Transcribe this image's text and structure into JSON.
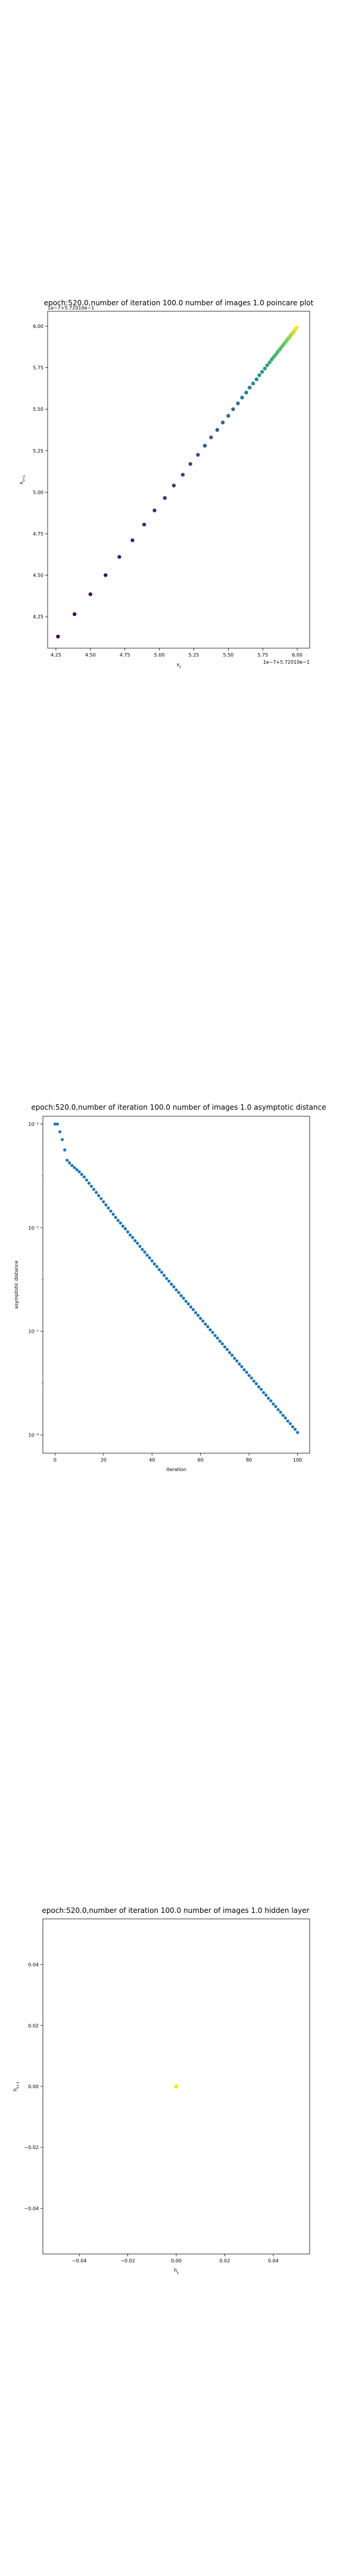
{
  "chart_data": [
    {
      "type": "scatter",
      "title": "epoch:520.0,number of iteration 100.0 number of images 1.0 poincare plot",
      "xlabel": "x_t",
      "ylabel": "x_{t+1}",
      "x_offset_text": "1e−7+5.72010e−1",
      "y_offset_text": "1e−7+5.72010e−1",
      "xlim": [
        4.19,
        6.09
      ],
      "ylim": [
        4.06,
        6.09
      ],
      "x_ticks": [
        "4.25",
        "4.50",
        "4.75",
        "5.00",
        "5.25",
        "5.50",
        "5.75",
        "6.00"
      ],
      "y_ticks": [
        "4.25",
        "4.50",
        "4.75",
        "5.00",
        "5.25",
        "5.50",
        "5.75",
        "6.00"
      ],
      "colormap": "viridis",
      "series": [
        {
          "x": [
            4.265,
            4.385,
            4.5,
            4.61,
            4.71,
            4.805,
            4.89,
            4.965,
            5.04,
            5.105,
            5.17,
            5.225,
            5.28,
            5.33,
            5.375,
            5.42,
            5.46,
            5.5,
            5.535,
            5.57,
            5.6,
            5.63,
            5.655,
            5.68,
            5.705,
            5.725,
            5.745,
            5.765,
            5.782,
            5.8,
            5.815,
            5.83,
            5.845,
            5.858,
            5.871,
            5.883,
            5.895,
            5.906,
            5.916,
            5.926,
            5.935,
            5.944,
            5.952,
            5.96,
            5.967,
            5.974,
            5.98,
            5.986,
            5.992,
            5.998
          ],
          "y": [
            4.13,
            4.265,
            4.385,
            4.5,
            4.61,
            4.71,
            4.805,
            4.89,
            4.965,
            5.04,
            5.105,
            5.17,
            5.225,
            5.28,
            5.33,
            5.375,
            5.42,
            5.46,
            5.5,
            5.535,
            5.57,
            5.6,
            5.63,
            5.655,
            5.68,
            5.705,
            5.725,
            5.745,
            5.765,
            5.782,
            5.8,
            5.815,
            5.83,
            5.845,
            5.858,
            5.871,
            5.883,
            5.895,
            5.906,
            5.916,
            5.926,
            5.935,
            5.944,
            5.952,
            5.96,
            5.967,
            5.974,
            5.98,
            5.986,
            5.992
          ]
        }
      ]
    },
    {
      "type": "scatter",
      "title": "epoch:520.0,number of iteration 100.0  number of images 1.0 asymptotic distance",
      "xlabel": "iteration",
      "ylabel": "asymptotic distance",
      "yscale": "log",
      "xlim": [
        -5,
        105
      ],
      "ylim_log10": [
        -9.35,
        -2.85
      ],
      "x_ticks": [
        0,
        20,
        40,
        60,
        80,
        100
      ],
      "y_tick_exponents": [
        -3,
        -5,
        -7,
        -9
      ],
      "y_tick_labels": [
        "10⁻³",
        "10⁻⁵",
        "10⁻⁷",
        "10⁻⁹"
      ],
      "color": "#1f77b4",
      "series": [
        {
          "x": [
            0,
            1,
            2,
            3,
            4,
            5,
            6,
            7,
            8,
            9,
            10,
            11,
            12,
            13,
            14,
            15,
            16,
            17,
            18,
            19,
            20,
            21,
            22,
            23,
            24,
            25,
            26,
            27,
            28,
            29,
            30,
            31,
            32,
            33,
            34,
            35,
            36,
            37,
            38,
            39,
            40,
            41,
            42,
            43,
            44,
            45,
            46,
            47,
            48,
            49,
            50,
            51,
            52,
            53,
            54,
            55,
            56,
            57,
            58,
            59,
            60,
            61,
            62,
            63,
            64,
            65,
            66,
            67,
            68,
            69,
            70,
            71,
            72,
            73,
            74,
            75,
            76,
            77,
            78,
            79,
            80,
            81,
            82,
            83,
            84,
            85,
            86,
            87,
            88,
            89,
            90,
            91,
            92,
            93,
            94,
            95,
            96,
            97,
            98,
            99,
            100
          ],
          "log10_y": [
            -3.0,
            -3.0,
            -3.15,
            -3.3,
            -3.5,
            -3.7,
            -3.75,
            -3.8,
            -3.84,
            -3.88,
            -3.92,
            -3.97,
            -4.02,
            -4.08,
            -4.14,
            -4.2,
            -4.26,
            -4.32,
            -4.38,
            -4.44,
            -4.5,
            -4.56,
            -4.62,
            -4.68,
            -4.74,
            -4.8,
            -4.86,
            -4.91,
            -4.97,
            -5.02,
            -5.08,
            -5.14,
            -5.19,
            -5.25,
            -5.3,
            -5.36,
            -5.42,
            -5.47,
            -5.53,
            -5.58,
            -5.64,
            -5.7,
            -5.75,
            -5.81,
            -5.86,
            -5.92,
            -5.98,
            -6.03,
            -6.09,
            -6.14,
            -6.2,
            -6.25,
            -6.31,
            -6.36,
            -6.42,
            -6.47,
            -6.53,
            -6.58,
            -6.64,
            -6.69,
            -6.75,
            -6.8,
            -6.86,
            -6.91,
            -6.97,
            -7.02,
            -7.08,
            -7.13,
            -7.19,
            -7.24,
            -7.3,
            -7.35,
            -7.41,
            -7.46,
            -7.52,
            -7.57,
            -7.63,
            -7.68,
            -7.74,
            -7.79,
            -7.85,
            -7.9,
            -7.96,
            -8.01,
            -8.07,
            -8.12,
            -8.18,
            -8.23,
            -8.29,
            -8.34,
            -8.4,
            -8.45,
            -8.51,
            -8.56,
            -8.62,
            -8.67,
            -8.73,
            -8.78,
            -8.84,
            -8.89,
            -8.95
          ]
        }
      ]
    },
    {
      "type": "scatter",
      "title": "epoch:520.0,number of iteration 100.0  number of images 1.0 hidden layer",
      "xlabel": "h_t",
      "ylabel": "h_{t+1}",
      "xlim": [
        -0.055,
        0.055
      ],
      "ylim": [
        -0.055,
        0.055
      ],
      "x_ticks": [
        "−0.04",
        "−0.02",
        "0.00",
        "0.02",
        "0.04"
      ],
      "y_ticks": [
        "0.04",
        "0.02",
        "0.00",
        "−0.02",
        "−0.04"
      ],
      "color": "#fde725",
      "series": [
        {
          "x": [
            0.0
          ],
          "y": [
            0.0
          ]
        }
      ]
    }
  ]
}
